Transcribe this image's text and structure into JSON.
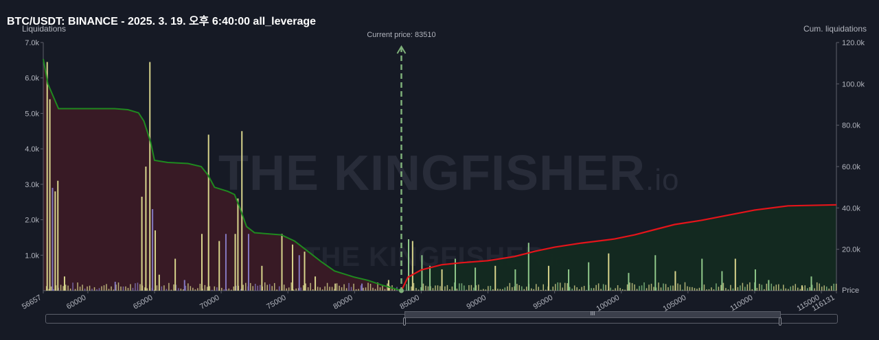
{
  "header": {
    "title": "BTC/USDT: BINANCE - 2025. 3. 19. 오후 6:40:00 all_leverage"
  },
  "watermark": {
    "text": "THE KINGFISHER",
    "suffix": ".io"
  },
  "chart_data": {
    "type": "bar",
    "current_price_label": "Current price: 83510",
    "current_price": 83510,
    "xlabel": "Price",
    "ylabel": "Liquidations",
    "y2label": "Cum. liquidations",
    "xlim": [
      56657,
      116131
    ],
    "x_ticks": [
      "56657",
      "60000",
      "65000",
      "70000",
      "75000",
      "80000",
      "85000",
      "90000",
      "95000",
      "100000",
      "105000",
      "110000",
      "115000",
      "116131"
    ],
    "ylim": [
      0,
      7000
    ],
    "y_ticks": [
      "1.0k",
      "2.0k",
      "3.0k",
      "4.0k",
      "5.0k",
      "6.0k",
      "7.0k"
    ],
    "y2lim": [
      0,
      120000
    ],
    "y2_ticks": [
      "20.0k",
      "40.0k",
      "60.0k",
      "80.0k",
      "100.0k",
      "120.0k"
    ],
    "grid": false,
    "colors": {
      "short_cum": "#e5141a",
      "long_cum": "#1f8a1f",
      "bar_yellow": "#d8d58c",
      "bar_purple": "#8478c0",
      "bar_green": "#8fc88a"
    },
    "series": [
      {
        "values_long_bars": [
          [
            56900,
            6450
          ],
          [
            57100,
            5400
          ],
          [
            57300,
            2900
          ],
          [
            57500,
            2800
          ],
          [
            57700,
            3100
          ],
          [
            58200,
            400
          ],
          [
            62000,
            250
          ],
          [
            64000,
            2650
          ],
          [
            64300,
            3500
          ],
          [
            64600,
            6450
          ],
          [
            64800,
            2300
          ],
          [
            65000,
            1700
          ],
          [
            65300,
            450
          ],
          [
            66500,
            900
          ],
          [
            67200,
            300
          ],
          [
            68500,
            1600
          ],
          [
            69000,
            4400
          ],
          [
            69800,
            1400
          ],
          [
            70300,
            1600
          ],
          [
            71000,
            1600
          ],
          [
            71200,
            2600
          ],
          [
            71500,
            4500
          ],
          [
            72000,
            1600
          ],
          [
            73000,
            700
          ],
          [
            74500,
            1600
          ],
          [
            75300,
            1300
          ],
          [
            75800,
            1000
          ],
          [
            76200,
            1100
          ],
          [
            77000,
            400
          ],
          [
            78500,
            200
          ],
          [
            80500,
            200
          ],
          [
            82500,
            300
          ]
        ],
        "values_short_bars": [
          [
            84000,
            1450
          ],
          [
            84300,
            1400
          ],
          [
            85000,
            1000
          ],
          [
            85600,
            700
          ],
          [
            86500,
            600
          ],
          [
            87500,
            900
          ],
          [
            89000,
            650
          ],
          [
            90500,
            700
          ],
          [
            92000,
            600
          ],
          [
            93000,
            1350
          ],
          [
            94500,
            700
          ],
          [
            96000,
            600
          ],
          [
            97500,
            800
          ],
          [
            99000,
            1050
          ],
          [
            100500,
            500
          ],
          [
            102500,
            1000
          ],
          [
            104000,
            550
          ],
          [
            106000,
            900
          ],
          [
            107500,
            550
          ],
          [
            108500,
            900
          ],
          [
            110000,
            600
          ],
          [
            111000,
            300
          ],
          [
            113500,
            150
          ],
          [
            114200,
            400
          ]
        ]
      },
      {
        "name": "",
        "cum_long": [
          [
            56657,
            112000
          ],
          [
            57000,
            100000
          ],
          [
            57800,
            88000
          ],
          [
            60000,
            88000
          ],
          [
            62000,
            88000
          ],
          [
            63000,
            87500
          ],
          [
            63800,
            86000
          ],
          [
            64200,
            82000
          ],
          [
            64700,
            72000
          ],
          [
            65000,
            63000
          ],
          [
            66000,
            62000
          ],
          [
            67500,
            61500
          ],
          [
            68500,
            60000
          ],
          [
            69000,
            56000
          ],
          [
            69500,
            50000
          ],
          [
            70500,
            48000
          ],
          [
            71000,
            46500
          ],
          [
            71400,
            40000
          ],
          [
            71900,
            31000
          ],
          [
            72500,
            28000
          ],
          [
            74500,
            27000
          ],
          [
            75500,
            24000
          ],
          [
            76500,
            19000
          ],
          [
            77500,
            14000
          ],
          [
            78500,
            9500
          ],
          [
            80000,
            6500
          ],
          [
            81000,
            5000
          ],
          [
            82000,
            2800
          ],
          [
            83510,
            0
          ]
        ],
        "cum_short": [
          [
            83510,
            0
          ],
          [
            84000,
            6500
          ],
          [
            85000,
            10000
          ],
          [
            86500,
            12500
          ],
          [
            88000,
            13500
          ],
          [
            90000,
            14500
          ],
          [
            92000,
            16500
          ],
          [
            93500,
            19000
          ],
          [
            95000,
            21000
          ],
          [
            97000,
            23000
          ],
          [
            99500,
            25000
          ],
          [
            101000,
            27000
          ],
          [
            102500,
            29500
          ],
          [
            104000,
            32000
          ],
          [
            106000,
            34000
          ],
          [
            108000,
            36500
          ],
          [
            110000,
            39000
          ],
          [
            112500,
            41000
          ],
          [
            116131,
            41500
          ]
        ]
      }
    ]
  },
  "scroller": {
    "grip": "III"
  }
}
